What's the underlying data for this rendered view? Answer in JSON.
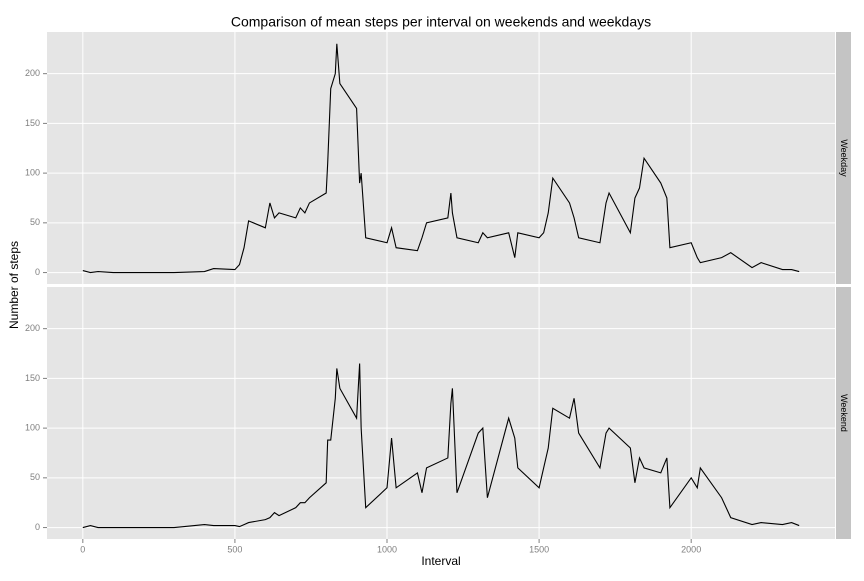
{
  "chart_data": {
    "type": "line",
    "title": "Comparison of mean steps per interval on weekends and weekdays",
    "xlabel": "Interval",
    "ylabel": "Number of steps",
    "x": [
      0,
      25,
      50,
      100,
      200,
      300,
      400,
      430,
      500,
      515,
      530,
      545,
      600,
      615,
      630,
      645,
      700,
      715,
      730,
      745,
      800,
      805,
      815,
      830,
      835,
      845,
      900,
      910,
      915,
      930,
      1000,
      1015,
      1030,
      1100,
      1115,
      1130,
      1200,
      1210,
      1215,
      1230,
      1300,
      1315,
      1330,
      1400,
      1420,
      1430,
      1500,
      1515,
      1530,
      1545,
      1600,
      1615,
      1630,
      1700,
      1720,
      1730,
      1800,
      1815,
      1830,
      1845,
      1900,
      1920,
      1930,
      2000,
      2020,
      2030,
      2100,
      2130,
      2200,
      2230,
      2300,
      2330,
      2355
    ],
    "series": [
      {
        "name": "Weekday",
        "color": "#000000",
        "values": [
          2,
          0,
          1,
          0,
          0,
          0,
          1,
          4,
          3,
          8,
          25,
          52,
          45,
          70,
          55,
          60,
          55,
          65,
          60,
          70,
          80,
          110,
          185,
          200,
          230,
          190,
          165,
          90,
          100,
          35,
          30,
          45,
          25,
          22,
          35,
          50,
          55,
          80,
          60,
          35,
          30,
          40,
          35,
          40,
          15,
          40,
          35,
          40,
          60,
          95,
          70,
          55,
          35,
          30,
          70,
          80,
          40,
          75,
          85,
          115,
          90,
          75,
          25,
          30,
          15,
          10,
          15,
          20,
          5,
          10,
          3,
          3,
          1
        ]
      },
      {
        "name": "Weekend",
        "color": "#000000",
        "values": [
          0,
          2,
          0,
          0,
          0,
          0,
          3,
          2,
          2,
          1,
          3,
          5,
          8,
          10,
          15,
          12,
          20,
          25,
          25,
          30,
          45,
          88,
          88,
          130,
          160,
          140,
          110,
          165,
          100,
          20,
          40,
          90,
          40,
          55,
          35,
          60,
          70,
          125,
          140,
          35,
          95,
          100,
          30,
          110,
          90,
          60,
          40,
          60,
          80,
          120,
          110,
          130,
          95,
          60,
          95,
          100,
          80,
          45,
          70,
          60,
          55,
          70,
          20,
          50,
          40,
          60,
          30,
          10,
          3,
          5,
          3,
          5,
          2
        ]
      }
    ],
    "xlim": [
      -117.75,
      2472.75
    ],
    "ylim": [
      -11.5,
      241.9
    ],
    "xticks": [
      0,
      500,
      1000,
      1500,
      2000
    ],
    "yticks": [
      0,
      50,
      100,
      150,
      200
    ],
    "grid": true
  }
}
